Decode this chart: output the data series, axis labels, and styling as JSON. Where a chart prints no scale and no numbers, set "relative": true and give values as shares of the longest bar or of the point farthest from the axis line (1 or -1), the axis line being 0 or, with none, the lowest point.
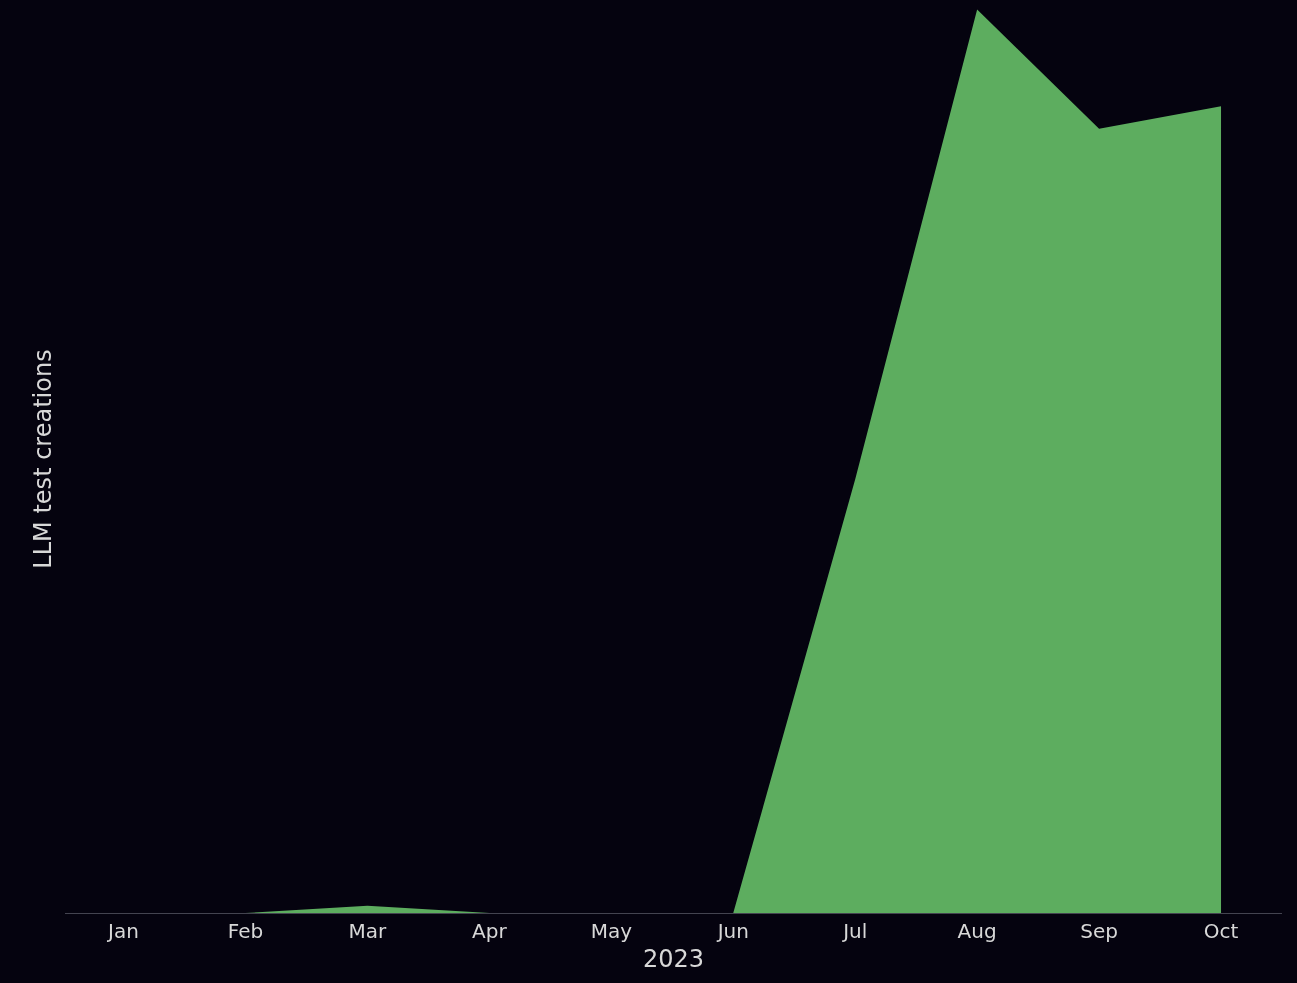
{
  "chart_data": {
    "type": "area",
    "xlabel": "2023",
    "ylabel": "LLM test creations",
    "relative": true,
    "categories": [
      "Jan",
      "Feb",
      "Mar",
      "Apr",
      "May",
      "Jun",
      "Jul",
      "Aug",
      "Sep",
      "Oct"
    ],
    "series": [
      {
        "color": "#5dad5f",
        "values": [
          0,
          0,
          0.008,
          0,
          0,
          0,
          0.48,
          1,
          0.868,
          0.893
        ]
      }
    ]
  }
}
